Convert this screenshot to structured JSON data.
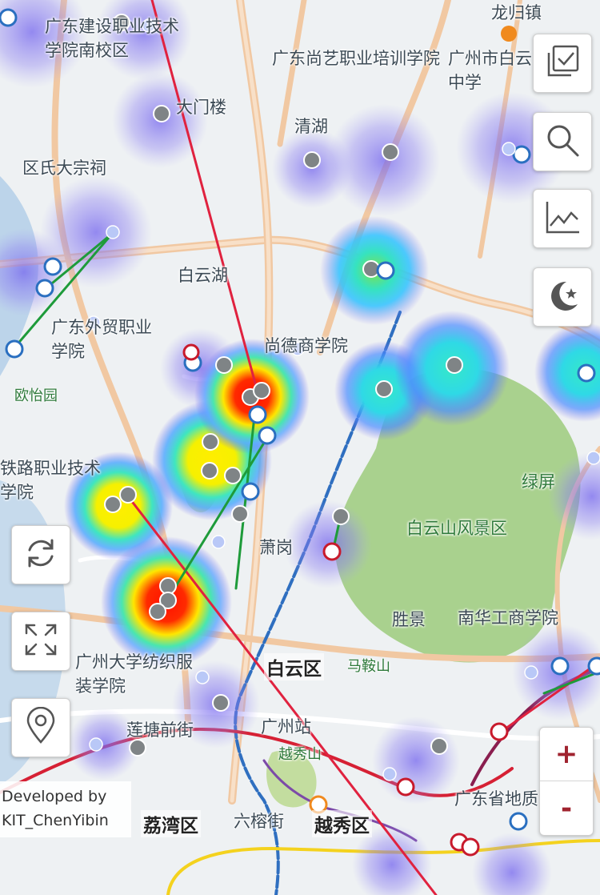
{
  "map": {
    "labels": {
      "school_south": "广东建设职业技术学院南校区",
      "shangyi": "广东尚艺职业培训学院",
      "longgui": "龙归镇",
      "damenlou": "大门楼",
      "qinghu": "清湖",
      "ancestral_hall": "区氏大宗祠",
      "baiyunhu": "白云湖",
      "trade_college": "广东外贸职业学院",
      "ouyiyuan": "欧怡园",
      "railway_college": "铁路职业技术学院",
      "business_college": "尚德商学院",
      "scenic_area": "白云山风景区",
      "lvping": "绿屏",
      "xiaogang": "萧岗",
      "shengjing": "胜景",
      "nanhua": "南华工商学院",
      "baiyun_district": "白云区",
      "maanshan": "马鞍山",
      "textile_college": "广州大学纺织服装学院",
      "lianqiao": "莲塘前街",
      "guangzhou_station": "广州站",
      "yuexiu_hill": "越秀山",
      "liwan": "荔湾区",
      "liurong": "六榕街",
      "yuexiu": "越秀区",
      "geology": "广东省地质",
      "zhongxue": "中学",
      "pinglai_east": "广州市白云中学"
    },
    "legend_colors": {
      "heat_low": "#7b6cf0",
      "heat_mid": "#35e0c0",
      "heat_high": "#ffe600",
      "heat_max": "#ff1200",
      "track_green": "#1e9b3a",
      "track_red": "#e0223f"
    }
  },
  "controls": {
    "layers_icon": "checkbox-stack-icon",
    "search_icon": "search-icon",
    "chart_icon": "line-chart-icon",
    "night_icon": "moon-stars-icon",
    "refresh_icon": "refresh-icon",
    "fullscreen_icon": "fullscreen-icon",
    "locate_icon": "location-pin-icon",
    "zoom_in": "+",
    "zoom_out": "-"
  },
  "credit": {
    "line1": "Developed by",
    "line2": "KIT_ChenYibin"
  }
}
